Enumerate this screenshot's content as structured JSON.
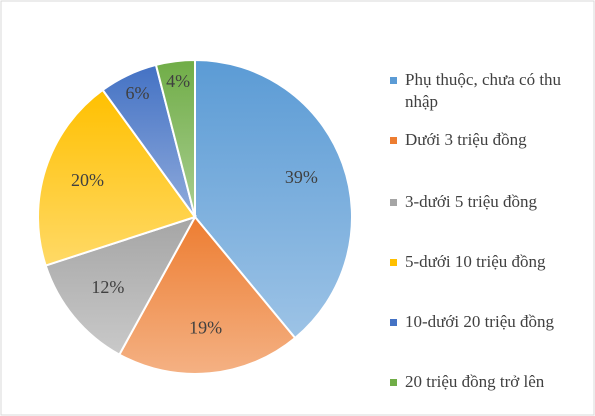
{
  "chart_data": {
    "type": "pie",
    "categories": [
      "Phụ thuộc, chưa có thu nhập",
      "Dưới 3 triệu đồng",
      "3-dưới 5 triệu đồng",
      "5-dưới 10 triệu đồng",
      "10-dưới 20 triệu đồng",
      "20 triệu đồng trở lên"
    ],
    "values": [
      39,
      19,
      12,
      20,
      6,
      4
    ],
    "value_labels": [
      "39%",
      "19%",
      "12%",
      "20%",
      "6%",
      "4%"
    ],
    "colors": [
      "#5b9bd5",
      "#ed7d31",
      "#a5a5a5",
      "#ffc000",
      "#4472c4",
      "#70ad47"
    ],
    "legend": "right"
  }
}
